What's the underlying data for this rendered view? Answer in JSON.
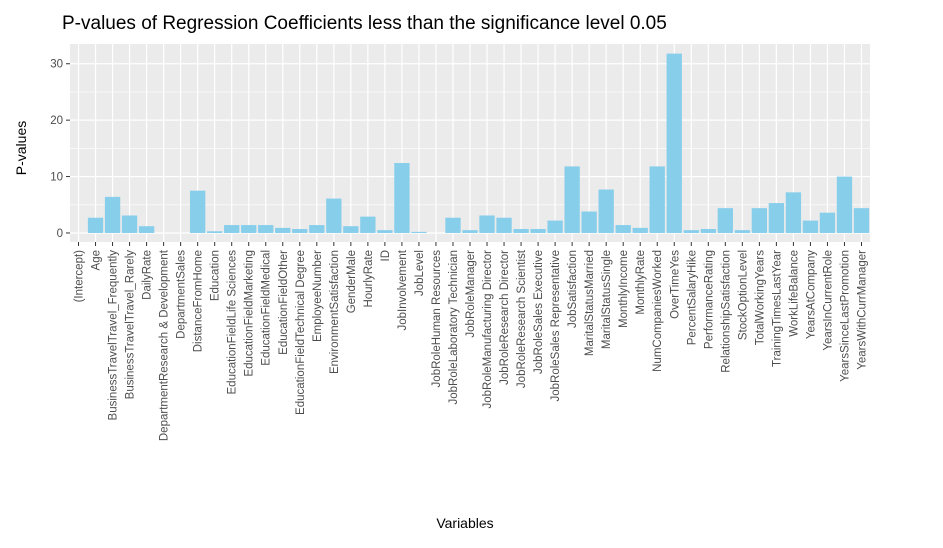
{
  "chart_data": {
    "type": "bar",
    "title": "P-values of Regression Coefficients less than the significance level 0.05",
    "xlabel": "Variables",
    "ylabel": "P-values",
    "ylim": [
      -1.6,
      33.5
    ],
    "yticks": [
      0,
      10,
      20,
      30
    ],
    "grid": true,
    "bar_color": "#87CEEB",
    "panel_color": "#EBEBEB",
    "grid_color": "#FFFFFF",
    "categories": [
      "(Intercept)",
      "Age",
      "BusinessTravelTravel_Frequently",
      "BusinessTravelTravel_Rarely",
      "DailyRate",
      "DepartmentResearch & Development",
      "DepartmentSales",
      "DistanceFromHome",
      "Education",
      "EducationFieldLife Sciences",
      "EducationFieldMarketing",
      "EducationFieldMedical",
      "EducationFieldOther",
      "EducationFieldTechnical Degree",
      "EmployeeNumber",
      "EnvironmentSatisfaction",
      "GenderMale",
      "HourlyRate",
      "ID",
      "JobInvolvement",
      "JobLevel",
      "JobRoleHuman Resources",
      "JobRoleLaboratory Technician",
      "JobRoleManager",
      "JobRoleManufacturing Director",
      "JobRoleResearch Director",
      "JobRoleResearch Scientist",
      "JobRoleSales Executive",
      "JobRoleSales Representative",
      "JobSatisfaction",
      "MaritalStatusMarried",
      "MaritalStatusSingle",
      "MonthlyIncome",
      "MonthlyRate",
      "NumCompaniesWorked",
      "OverTimeYes",
      "PercentSalaryHike",
      "PerformanceRating",
      "RelationshipSatisfaction",
      "StockOptionLevel",
      "TotalWorkingYears",
      "TrainingTimesLastYear",
      "WorkLifeBalance",
      "YearsAtCompany",
      "YearsInCurrentRole",
      "YearsSinceLastPromotion",
      "YearsWithCurrManager"
    ],
    "values": [
      0.0,
      2.7,
      6.4,
      3.1,
      1.2,
      0.0,
      0.0,
      7.5,
      0.3,
      1.4,
      1.4,
      1.4,
      0.9,
      0.7,
      1.4,
      6.1,
      1.2,
      2.9,
      0.5,
      12.4,
      0.2,
      0.0,
      2.7,
      0.5,
      3.1,
      2.7,
      0.7,
      0.7,
      2.2,
      11.8,
      3.8,
      7.7,
      1.4,
      0.9,
      11.8,
      31.8,
      0.5,
      0.7,
      4.4,
      0.5,
      4.4,
      5.3,
      7.2,
      2.2,
      3.6,
      10.0,
      4.4
    ]
  }
}
